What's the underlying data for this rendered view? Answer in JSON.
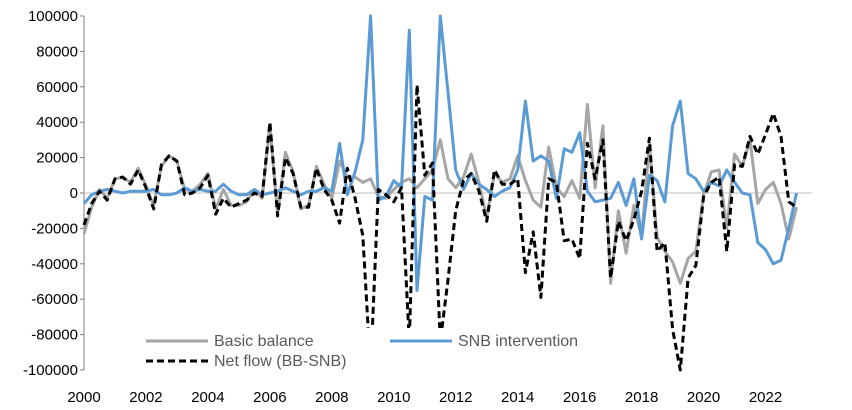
{
  "chart_data": {
    "type": "line",
    "title": "",
    "xlabel": "",
    "ylabel": "",
    "xlim": [
      2000,
      2023.5
    ],
    "ylim": [
      -100000,
      100000
    ],
    "x_ticks": [
      "2000",
      "2002",
      "2004",
      "2006",
      "2008",
      "2010",
      "2012",
      "2014",
      "2016",
      "2018",
      "2020",
      "2022"
    ],
    "y_ticks": [
      "100000",
      "80000",
      "60000",
      "40000",
      "20000",
      "0",
      "-20000",
      "-40000",
      "-60000",
      "-80000",
      "-100000"
    ],
    "grid": false,
    "legend": "bottom-left, inside plot",
    "series": [
      {
        "name": "Basic balance",
        "color": "#a6a6a6",
        "style": "solid",
        "points": [
          [
            2000.0,
            -23000
          ],
          [
            2000.25,
            -8000
          ],
          [
            2000.5,
            2000
          ],
          [
            2000.75,
            -3000
          ],
          [
            2001.0,
            8000
          ],
          [
            2001.25,
            9000
          ],
          [
            2001.5,
            6000
          ],
          [
            2001.75,
            14000
          ],
          [
            2002.0,
            4000
          ],
          [
            2002.25,
            -7000
          ],
          [
            2002.5,
            15000
          ],
          [
            2002.75,
            21000
          ],
          [
            2003.0,
            18000
          ],
          [
            2003.25,
            2000
          ],
          [
            2003.5,
            1000
          ],
          [
            2003.75,
            5000
          ],
          [
            2004.0,
            11000
          ],
          [
            2004.25,
            -9000
          ],
          [
            2004.5,
            2000
          ],
          [
            2004.75,
            -7000
          ],
          [
            2005.0,
            -7000
          ],
          [
            2005.25,
            -5000
          ],
          [
            2005.5,
            2000
          ],
          [
            2005.75,
            -3000
          ],
          [
            2006.0,
            38000
          ],
          [
            2006.25,
            -12000
          ],
          [
            2006.5,
            23000
          ],
          [
            2006.75,
            12000
          ],
          [
            2007.0,
            -9000
          ],
          [
            2007.25,
            -7000
          ],
          [
            2007.5,
            15000
          ],
          [
            2007.75,
            5000
          ],
          [
            2008.0,
            -3000
          ],
          [
            2008.25,
            18000
          ],
          [
            2008.5,
            9000
          ],
          [
            2008.75,
            9000
          ],
          [
            2009.0,
            6000
          ],
          [
            2009.25,
            8000
          ],
          [
            2009.5,
            -2000
          ],
          [
            2009.75,
            -3000
          ],
          [
            2010.0,
            2000
          ],
          [
            2010.25,
            6000
          ],
          [
            2010.5,
            8000
          ],
          [
            2010.75,
            3000
          ],
          [
            2011.0,
            8000
          ],
          [
            2011.25,
            13000
          ],
          [
            2011.5,
            30000
          ],
          [
            2011.75,
            8000
          ],
          [
            2012.0,
            3000
          ],
          [
            2012.25,
            9000
          ],
          [
            2012.5,
            22000
          ],
          [
            2012.75,
            6000
          ],
          [
            2013.0,
            -14000
          ],
          [
            2013.25,
            11000
          ],
          [
            2013.5,
            6000
          ],
          [
            2013.75,
            8000
          ],
          [
            2014.0,
            21000
          ],
          [
            2014.25,
            7000
          ],
          [
            2014.5,
            -4000
          ],
          [
            2014.75,
            -8000
          ],
          [
            2015.0,
            26000
          ],
          [
            2015.25,
            3000
          ],
          [
            2015.5,
            -2000
          ],
          [
            2015.75,
            7000
          ],
          [
            2016.0,
            -3000
          ],
          [
            2016.25,
            50000
          ],
          [
            2016.5,
            3000
          ],
          [
            2016.75,
            38000
          ],
          [
            2017.0,
            -51000
          ],
          [
            2017.25,
            -10000
          ],
          [
            2017.5,
            -34000
          ],
          [
            2017.75,
            -7000
          ],
          [
            2018.0,
            -25000
          ],
          [
            2018.25,
            28000
          ],
          [
            2018.5,
            -25000
          ],
          [
            2018.75,
            -33000
          ],
          [
            2019.0,
            -39000
          ],
          [
            2019.25,
            -51000
          ],
          [
            2019.5,
            -37000
          ],
          [
            2019.75,
            -33000
          ],
          [
            2020.0,
            -1000
          ],
          [
            2020.25,
            12000
          ],
          [
            2020.5,
            13000
          ],
          [
            2020.75,
            -20000
          ],
          [
            2021.0,
            22000
          ],
          [
            2021.25,
            15000
          ],
          [
            2021.5,
            30000
          ],
          [
            2021.75,
            -6000
          ],
          [
            2022.0,
            2000
          ],
          [
            2022.25,
            6000
          ],
          [
            2022.5,
            -6000
          ],
          [
            2022.75,
            -26000
          ],
          [
            2023.0,
            -8000
          ]
        ]
      },
      {
        "name": "SNB intervention",
        "color": "#5b9bd5",
        "style": "solid",
        "points": [
          [
            2000.0,
            -6000
          ],
          [
            2000.25,
            -1000
          ],
          [
            2000.5,
            1000
          ],
          [
            2000.75,
            2000
          ],
          [
            2001.0,
            1000
          ],
          [
            2001.25,
            0
          ],
          [
            2001.5,
            1000
          ],
          [
            2001.75,
            1000
          ],
          [
            2002.0,
            1000
          ],
          [
            2002.25,
            2000
          ],
          [
            2002.5,
            -1000
          ],
          [
            2002.75,
            -1000
          ],
          [
            2003.0,
            0
          ],
          [
            2003.25,
            3000
          ],
          [
            2003.5,
            1000
          ],
          [
            2003.75,
            2000
          ],
          [
            2004.0,
            1000
          ],
          [
            2004.25,
            1000
          ],
          [
            2004.5,
            5000
          ],
          [
            2004.75,
            1000
          ],
          [
            2005.0,
            -1000
          ],
          [
            2005.25,
            -1000
          ],
          [
            2005.5,
            2000
          ],
          [
            2005.75,
            -1000
          ],
          [
            2006.0,
            0
          ],
          [
            2006.25,
            1000
          ],
          [
            2006.5,
            3000
          ],
          [
            2006.75,
            1000
          ],
          [
            2007.0,
            -1000
          ],
          [
            2007.25,
            1000
          ],
          [
            2007.5,
            1000
          ],
          [
            2007.75,
            3000
          ],
          [
            2008.0,
            1000
          ],
          [
            2008.25,
            28000
          ],
          [
            2008.5,
            -1000
          ],
          [
            2008.75,
            12000
          ],
          [
            2009.0,
            30000
          ],
          [
            2009.25,
            100000
          ],
          [
            2009.5,
            -4000
          ],
          [
            2009.75,
            -2000
          ],
          [
            2010.0,
            7000
          ],
          [
            2010.25,
            3000
          ],
          [
            2010.5,
            92000
          ],
          [
            2010.75,
            -55000
          ],
          [
            2011.0,
            -2000
          ],
          [
            2011.25,
            -4000
          ],
          [
            2011.5,
            100000
          ],
          [
            2011.75,
            57000
          ],
          [
            2012.0,
            13000
          ],
          [
            2012.25,
            2000
          ],
          [
            2012.5,
            11000
          ],
          [
            2012.75,
            5000
          ],
          [
            2013.0,
            2000
          ],
          [
            2013.25,
            -2000
          ],
          [
            2013.5,
            1000
          ],
          [
            2013.75,
            3000
          ],
          [
            2014.0,
            13000
          ],
          [
            2014.25,
            52000
          ],
          [
            2014.5,
            18000
          ],
          [
            2014.75,
            21000
          ],
          [
            2015.0,
            18000
          ],
          [
            2015.25,
            -3000
          ],
          [
            2015.5,
            25000
          ],
          [
            2015.75,
            23000
          ],
          [
            2016.0,
            34000
          ],
          [
            2016.25,
            1000
          ],
          [
            2016.5,
            -5000
          ],
          [
            2016.75,
            -4000
          ],
          [
            2017.0,
            -3000
          ],
          [
            2017.25,
            6000
          ],
          [
            2017.5,
            -7000
          ],
          [
            2017.75,
            8000
          ],
          [
            2018.0,
            -26000
          ],
          [
            2018.25,
            10000
          ],
          [
            2018.5,
            7000
          ],
          [
            2018.75,
            -5000
          ],
          [
            2019.0,
            38000
          ],
          [
            2019.25,
            52000
          ],
          [
            2019.5,
            11000
          ],
          [
            2019.75,
            8000
          ],
          [
            2020.0,
            1000
          ],
          [
            2020.25,
            6000
          ],
          [
            2020.5,
            4000
          ],
          [
            2020.75,
            13000
          ],
          [
            2021.0,
            6000
          ],
          [
            2021.25,
            0
          ],
          [
            2021.5,
            -1000
          ],
          [
            2021.75,
            -28000
          ],
          [
            2022.0,
            -32000
          ],
          [
            2022.25,
            -40000
          ],
          [
            2022.5,
            -38000
          ],
          [
            2022.75,
            -20000
          ],
          [
            2023.0,
            0
          ]
        ]
      },
      {
        "name": "Net flow (BB-SNB)",
        "color": "#000000",
        "style": "dashed",
        "points": [
          [
            2000.0,
            -18000
          ],
          [
            2000.25,
            -6000
          ],
          [
            2000.5,
            1000
          ],
          [
            2000.75,
            -4000
          ],
          [
            2001.0,
            8000
          ],
          [
            2001.25,
            9000
          ],
          [
            2001.5,
            5000
          ],
          [
            2001.75,
            13000
          ],
          [
            2002.0,
            3000
          ],
          [
            2002.25,
            -9000
          ],
          [
            2002.5,
            16000
          ],
          [
            2002.75,
            21000
          ],
          [
            2003.0,
            18000
          ],
          [
            2003.25,
            -1000
          ],
          [
            2003.5,
            0
          ],
          [
            2003.75,
            3000
          ],
          [
            2004.0,
            10000
          ],
          [
            2004.25,
            -12000
          ],
          [
            2004.5,
            -3000
          ],
          [
            2004.75,
            -8000
          ],
          [
            2005.0,
            -6000
          ],
          [
            2005.25,
            -4000
          ],
          [
            2005.5,
            0
          ],
          [
            2005.75,
            -2000
          ],
          [
            2006.0,
            40000
          ],
          [
            2006.25,
            -13000
          ],
          [
            2006.5,
            20000
          ],
          [
            2006.75,
            11000
          ],
          [
            2007.0,
            -8000
          ],
          [
            2007.25,
            -8000
          ],
          [
            2007.5,
            14000
          ],
          [
            2007.75,
            2000
          ],
          [
            2008.0,
            -4000
          ],
          [
            2008.25,
            -17000
          ],
          [
            2008.5,
            14000
          ],
          [
            2008.75,
            -3000
          ],
          [
            2009.0,
            -24000
          ],
          [
            2009.25,
            -100000
          ],
          [
            2009.5,
            2000
          ],
          [
            2009.75,
            -1000
          ],
          [
            2010.0,
            -5000
          ],
          [
            2010.25,
            3000
          ],
          [
            2010.5,
            -84000
          ],
          [
            2010.75,
            61000
          ],
          [
            2011.0,
            10000
          ],
          [
            2011.25,
            17000
          ],
          [
            2011.5,
            -84000
          ],
          [
            2011.75,
            -49000
          ],
          [
            2012.0,
            -10000
          ],
          [
            2012.25,
            7000
          ],
          [
            2012.5,
            11000
          ],
          [
            2012.75,
            1000
          ],
          [
            2013.0,
            -16000
          ],
          [
            2013.25,
            13000
          ],
          [
            2013.5,
            5000
          ],
          [
            2013.75,
            5000
          ],
          [
            2014.0,
            8000
          ],
          [
            2014.25,
            -45000
          ],
          [
            2014.5,
            -22000
          ],
          [
            2014.75,
            -59000
          ],
          [
            2015.0,
            8000
          ],
          [
            2015.25,
            6000
          ],
          [
            2015.5,
            -27000
          ],
          [
            2015.75,
            -26000
          ],
          [
            2016.0,
            -37000
          ],
          [
            2016.25,
            28000
          ],
          [
            2016.5,
            8000
          ],
          [
            2016.75,
            30000
          ],
          [
            2017.0,
            -48000
          ],
          [
            2017.25,
            -16000
          ],
          [
            2017.5,
            -27000
          ],
          [
            2017.75,
            -15000
          ],
          [
            2018.0,
            1000
          ],
          [
            2018.25,
            31000
          ],
          [
            2018.5,
            -33000
          ],
          [
            2018.75,
            -28000
          ],
          [
            2019.0,
            -77000
          ],
          [
            2019.25,
            -100000
          ],
          [
            2019.5,
            -48000
          ],
          [
            2019.75,
            -41000
          ],
          [
            2020.0,
            -2000
          ],
          [
            2020.25,
            6000
          ],
          [
            2020.5,
            9000
          ],
          [
            2020.75,
            -33000
          ],
          [
            2021.0,
            16000
          ],
          [
            2021.25,
            15000
          ],
          [
            2021.5,
            32000
          ],
          [
            2021.75,
            22000
          ],
          [
            2022.0,
            33000
          ],
          [
            2022.25,
            45000
          ],
          [
            2022.5,
            32000
          ],
          [
            2022.75,
            -5000
          ],
          [
            2023.0,
            -8000
          ]
        ]
      }
    ]
  }
}
